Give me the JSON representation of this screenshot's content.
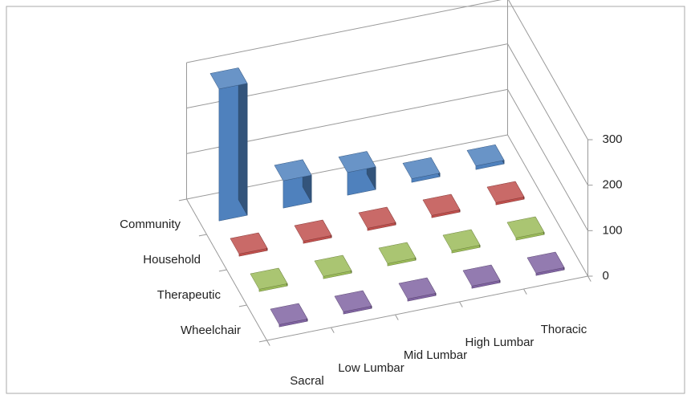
{
  "chart_data": {
    "type": "bar3d",
    "categories": [
      "Sacral",
      "Low Lumbar",
      "Mid Lumbar",
      "High Lumbar",
      "Thoracic"
    ],
    "series": [
      {
        "name": "Community",
        "color": "#4f81bd",
        "values": [
          290,
          60,
          50,
          8,
          8
        ]
      },
      {
        "name": "Household",
        "color": "#c0504d",
        "values": [
          5,
          5,
          5,
          5,
          5
        ]
      },
      {
        "name": "Therapeutic",
        "color": "#9bbb59",
        "values": [
          5,
          5,
          5,
          5,
          5
        ]
      },
      {
        "name": "Wheelchair",
        "color": "#8064a2",
        "values": [
          5,
          5,
          5,
          5,
          5
        ]
      }
    ],
    "ylim": [
      0,
      300
    ],
    "yticks": [
      0,
      100,
      200,
      300
    ],
    "grid": true
  }
}
